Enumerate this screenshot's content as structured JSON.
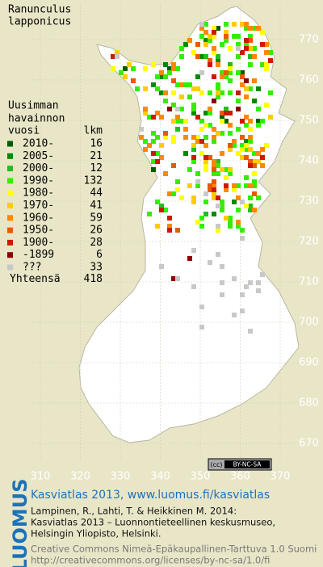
{
  "title": {
    "line1": "Ranunculus",
    "line2": "lapponicus"
  },
  "legend": {
    "heading": [
      "Uusimman",
      "havainnon",
      "vuosi"
    ],
    "count_heading": "lkm",
    "items": [
      {
        "label": "2010-",
        "count": 16,
        "color": "#005c00"
      },
      {
        "label": "2005-",
        "count": 21,
        "color": "#008a00"
      },
      {
        "label": "2000-",
        "count": 12,
        "color": "#1fbf1f"
      },
      {
        "label": "1990-",
        "count": 132,
        "color": "#33ee00"
      },
      {
        "label": "1980-",
        "count": 44,
        "color": "#ffff00"
      },
      {
        "label": "1970-",
        "count": 41,
        "color": "#ffcc00"
      },
      {
        "label": "1960-",
        "count": 59,
        "color": "#ff8800"
      },
      {
        "label": "1950-",
        "count": 26,
        "color": "#e85a00"
      },
      {
        "label": "1900-",
        "count": 28,
        "color": "#cc1a00"
      },
      {
        "label": "-1899",
        "count": 6,
        "color": "#8b0000"
      },
      {
        "label": "???",
        "count": 33,
        "color": "#c8c8c8"
      }
    ],
    "total_label": "Yhteensä",
    "total": 418
  },
  "map": {
    "yticks": [
      770,
      760,
      750,
      740,
      730,
      720,
      710,
      700,
      690,
      680,
      670
    ],
    "xticks": [
      310,
      320,
      330,
      340,
      350,
      360,
      370
    ]
  },
  "license_badge": {
    "cc": "(cc)",
    "terms": "BY-NC-SA"
  },
  "footer": {
    "logo": "LUOMUS",
    "headline": "Kasviatlas 2013, www.luomus.fi/kasviatlas",
    "citation": [
      "Lampinen, R., Lahti, T. & Heikkinen M. 2014:",
      "Kasviatlas 2013 – Luonnontieteellinen keskusmuseo,",
      "Helsingin Yliopisto, Helsinki."
    ],
    "license": [
      "Creative Commons Nimeä-Epäkaupallinen-Tarttuva 1.0 Suomi",
      "http://creativecommons.org/licenses/by-nc-sa/1.0/fi"
    ]
  }
}
